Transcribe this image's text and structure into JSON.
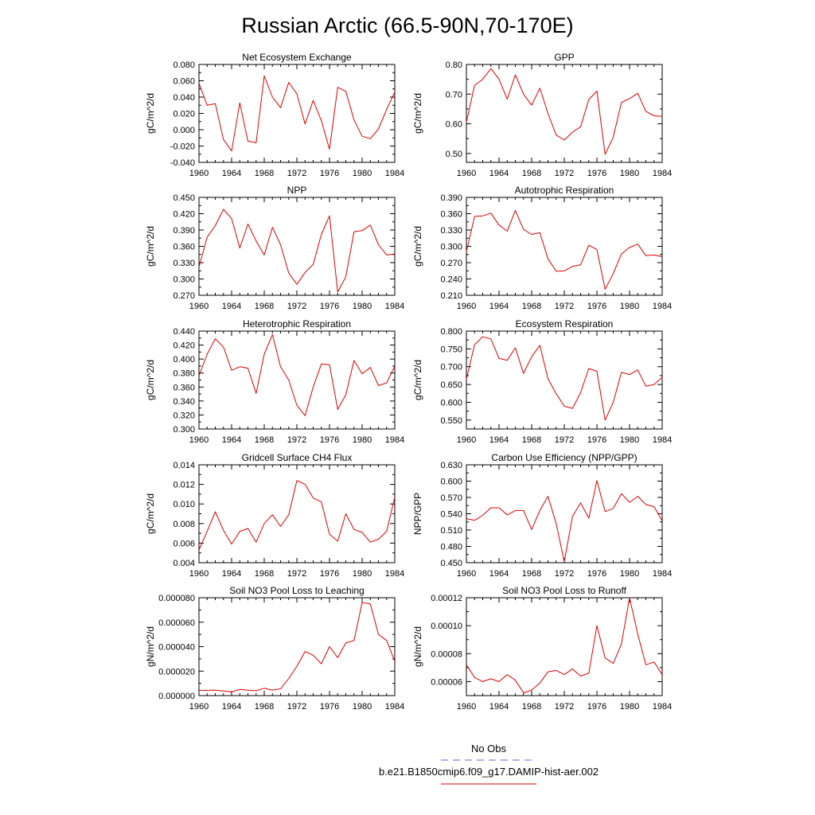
{
  "title": "Russian Arctic (66.5-90N,70-170E)",
  "legend": {
    "placement": "bottom-center",
    "items": [
      {
        "label": "No Obs",
        "color": "#6666dd",
        "dash": true
      },
      {
        "label": "b.e21.B1850cmip6.f09_g17.DAMIP-hist-aer.002",
        "color": "#dd0000",
        "dash": false
      }
    ]
  },
  "chart_data": [
    {
      "type": "line",
      "title": "Net Ecosystem Exchange",
      "ylabel": "gC/m^2/d",
      "xlim": [
        1960,
        1984
      ],
      "ylim": [
        -0.04,
        0.08
      ],
      "xticks": [
        1960,
        1964,
        1968,
        1972,
        1976,
        1980,
        1984
      ],
      "xtick_labels": [
        "1960",
        "1964",
        "1968",
        "1972",
        "1976",
        "1980",
        "1984"
      ],
      "yticks": [
        -0.04,
        -0.02,
        0,
        0.02,
        0.04,
        0.06,
        0.08
      ],
      "ytick_labels": [
        "-0.040",
        "-0.020",
        "0.000",
        "0.020",
        "0.040",
        "0.060",
        "0.080"
      ],
      "x": [
        1960,
        1961,
        1962,
        1963,
        1964,
        1965,
        1966,
        1967,
        1968,
        1969,
        1970,
        1971,
        1972,
        1973,
        1974,
        1975,
        1976,
        1977,
        1978,
        1979,
        1980,
        1981,
        1982,
        1983,
        1984
      ],
      "series": [
        {
          "color": "#dd0000",
          "values": [
            0.057,
            0.03,
            0.032,
            -0.012,
            -0.026,
            0.033,
            -0.014,
            -0.016,
            0.066,
            0.04,
            0.027,
            0.058,
            0.044,
            0.007,
            0.036,
            0.011,
            -0.024,
            0.052,
            0.047,
            0.012,
            -0.008,
            -0.011,
            0.001,
            0.025,
            0.046
          ]
        }
      ]
    },
    {
      "type": "line",
      "title": "GPP",
      "ylabel": "gC/m^2/d",
      "xlim": [
        1960,
        1984
      ],
      "ylim": [
        0.47,
        0.8
      ],
      "xticks": [
        1960,
        1964,
        1968,
        1972,
        1976,
        1980,
        1984
      ],
      "xtick_labels": [
        "1960",
        "1964",
        "1968",
        "1972",
        "1976",
        "1980",
        "1984"
      ],
      "yticks": [
        0.5,
        0.6,
        0.7,
        0.8
      ],
      "ytick_labels": [
        "0.50",
        "0.60",
        "0.70",
        "0.80"
      ],
      "x": [
        1960,
        1961,
        1962,
        1963,
        1964,
        1965,
        1966,
        1967,
        1968,
        1969,
        1970,
        1971,
        1972,
        1973,
        1974,
        1975,
        1976,
        1977,
        1978,
        1979,
        1980,
        1981,
        1982,
        1983,
        1984
      ],
      "series": [
        {
          "color": "#dd0000",
          "values": [
            0.605,
            0.73,
            0.75,
            0.786,
            0.75,
            0.683,
            0.765,
            0.7,
            0.663,
            0.72,
            0.635,
            0.562,
            0.545,
            0.572,
            0.59,
            0.682,
            0.71,
            0.497,
            0.555,
            0.672,
            0.685,
            0.703,
            0.642,
            0.627,
            0.625
          ]
        }
      ]
    },
    {
      "type": "line",
      "title": "NPP",
      "ylabel": "gC/m^2/d",
      "xlim": [
        1960,
        1984
      ],
      "ylim": [
        0.27,
        0.45
      ],
      "xticks": [
        1960,
        1964,
        1968,
        1972,
        1976,
        1980,
        1984
      ],
      "xtick_labels": [
        "1960",
        "1964",
        "1968",
        "1972",
        "1976",
        "1980",
        "1984"
      ],
      "yticks": [
        0.27,
        0.3,
        0.33,
        0.36,
        0.39,
        0.42,
        0.45
      ],
      "ytick_labels": [
        "0.270",
        "0.300",
        "0.330",
        "0.360",
        "0.390",
        "0.420",
        "0.450"
      ],
      "x": [
        1960,
        1961,
        1962,
        1963,
        1964,
        1965,
        1966,
        1967,
        1968,
        1969,
        1970,
        1971,
        1972,
        1973,
        1974,
        1975,
        1976,
        1977,
        1978,
        1979,
        1980,
        1981,
        1982,
        1983,
        1984
      ],
      "series": [
        {
          "color": "#dd0000",
          "values": [
            0.322,
            0.377,
            0.398,
            0.428,
            0.411,
            0.357,
            0.401,
            0.37,
            0.344,
            0.395,
            0.363,
            0.311,
            0.29,
            0.312,
            0.327,
            0.382,
            0.416,
            0.276,
            0.304,
            0.387,
            0.389,
            0.399,
            0.363,
            0.344,
            0.346
          ]
        }
      ]
    },
    {
      "type": "line",
      "title": "Autotrophic Respiration",
      "ylabel": "gC/m^2/d",
      "xlim": [
        1960,
        1984
      ],
      "ylim": [
        0.21,
        0.39
      ],
      "xticks": [
        1960,
        1964,
        1968,
        1972,
        1976,
        1980,
        1984
      ],
      "xtick_labels": [
        "1960",
        "1964",
        "1968",
        "1972",
        "1976",
        "1980",
        "1984"
      ],
      "yticks": [
        0.21,
        0.24,
        0.27,
        0.3,
        0.33,
        0.36,
        0.39
      ],
      "ytick_labels": [
        "0.210",
        "0.240",
        "0.270",
        "0.300",
        "0.330",
        "0.360",
        "0.390"
      ],
      "x": [
        1960,
        1961,
        1962,
        1963,
        1964,
        1965,
        1966,
        1967,
        1968,
        1969,
        1970,
        1971,
        1972,
        1973,
        1974,
        1975,
        1976,
        1977,
        1978,
        1979,
        1980,
        1981,
        1982,
        1983,
        1984
      ],
      "series": [
        {
          "color": "#dd0000",
          "values": [
            0.29,
            0.355,
            0.356,
            0.361,
            0.339,
            0.328,
            0.366,
            0.331,
            0.322,
            0.325,
            0.277,
            0.254,
            0.255,
            0.263,
            0.266,
            0.302,
            0.294,
            0.221,
            0.25,
            0.286,
            0.298,
            0.304,
            0.283,
            0.284,
            0.281
          ]
        }
      ]
    },
    {
      "type": "line",
      "title": "Heterotrophic Respiration",
      "ylabel": "gC/m^2/d",
      "xlim": [
        1960,
        1984
      ],
      "ylim": [
        0.3,
        0.44
      ],
      "xticks": [
        1960,
        1964,
        1968,
        1972,
        1976,
        1980,
        1984
      ],
      "xtick_labels": [
        "1960",
        "1964",
        "1968",
        "1972",
        "1976",
        "1980",
        "1984"
      ],
      "yticks": [
        0.3,
        0.32,
        0.34,
        0.36,
        0.38,
        0.4,
        0.42,
        0.44
      ],
      "ytick_labels": [
        "0.300",
        "0.320",
        "0.340",
        "0.360",
        "0.380",
        "0.400",
        "0.420",
        "0.440"
      ],
      "x": [
        1960,
        1961,
        1962,
        1963,
        1964,
        1965,
        1966,
        1967,
        1968,
        1969,
        1970,
        1971,
        1972,
        1973,
        1974,
        1975,
        1976,
        1977,
        1978,
        1979,
        1980,
        1981,
        1982,
        1983,
        1984
      ],
      "series": [
        {
          "color": "#dd0000",
          "values": [
            0.376,
            0.407,
            0.429,
            0.417,
            0.384,
            0.389,
            0.387,
            0.351,
            0.407,
            0.435,
            0.389,
            0.37,
            0.334,
            0.319,
            0.36,
            0.393,
            0.392,
            0.328,
            0.349,
            0.398,
            0.379,
            0.388,
            0.362,
            0.366,
            0.39
          ]
        }
      ]
    },
    {
      "type": "line",
      "title": "Ecosystem Respiration",
      "ylabel": "gC/m^2/d",
      "xlim": [
        1960,
        1984
      ],
      "ylim": [
        0.525,
        0.8
      ],
      "xticks": [
        1960,
        1964,
        1968,
        1972,
        1976,
        1980,
        1984
      ],
      "xtick_labels": [
        "1960",
        "1964",
        "1968",
        "1972",
        "1976",
        "1980",
        "1984"
      ],
      "yticks": [
        0.55,
        0.6,
        0.65,
        0.7,
        0.75,
        0.8
      ],
      "ytick_labels": [
        "0.550",
        "0.600",
        "0.650",
        "0.700",
        "0.750",
        "0.800"
      ],
      "x": [
        1960,
        1961,
        1962,
        1963,
        1964,
        1965,
        1966,
        1967,
        1968,
        1969,
        1970,
        1971,
        1972,
        1973,
        1974,
        1975,
        1976,
        1977,
        1978,
        1979,
        1980,
        1981,
        1982,
        1983,
        1984
      ],
      "series": [
        {
          "color": "#dd0000",
          "values": [
            0.665,
            0.762,
            0.784,
            0.778,
            0.723,
            0.718,
            0.753,
            0.681,
            0.728,
            0.76,
            0.666,
            0.624,
            0.589,
            0.583,
            0.627,
            0.695,
            0.687,
            0.55,
            0.6,
            0.684,
            0.678,
            0.691,
            0.645,
            0.65,
            0.67
          ]
        }
      ]
    },
    {
      "type": "line",
      "title": "Gridcell Surface CH4 Flux",
      "ylabel": "gC/m^2/d",
      "xlim": [
        1960,
        1984
      ],
      "ylim": [
        0.004,
        0.014
      ],
      "xticks": [
        1960,
        1964,
        1968,
        1972,
        1976,
        1980,
        1984
      ],
      "xtick_labels": [
        "1960",
        "1964",
        "1968",
        "1972",
        "1976",
        "1980",
        "1984"
      ],
      "yticks": [
        0.004,
        0.006,
        0.008,
        0.01,
        0.012,
        0.014
      ],
      "ytick_labels": [
        "0.004",
        "0.006",
        "0.008",
        "0.010",
        "0.012",
        "0.014"
      ],
      "x": [
        1960,
        1961,
        1962,
        1963,
        1964,
        1965,
        1966,
        1967,
        1968,
        1969,
        1970,
        1971,
        1972,
        1973,
        1974,
        1975,
        1976,
        1977,
        1978,
        1979,
        1980,
        1981,
        1982,
        1983,
        1984
      ],
      "series": [
        {
          "color": "#dd0000",
          "values": [
            0.0053,
            0.0072,
            0.0092,
            0.0073,
            0.0059,
            0.0072,
            0.0075,
            0.0061,
            0.008,
            0.0089,
            0.0077,
            0.0089,
            0.0124,
            0.012,
            0.0106,
            0.0102,
            0.0069,
            0.0062,
            0.009,
            0.0074,
            0.0071,
            0.0061,
            0.0064,
            0.0072,
            0.0107
          ]
        }
      ]
    },
    {
      "type": "line",
      "title": "Carbon Use Efficiency (NPP/GPP)",
      "ylabel": "NPP/GPP",
      "xlim": [
        1960,
        1984
      ],
      "ylim": [
        0.45,
        0.63
      ],
      "xticks": [
        1960,
        1964,
        1968,
        1972,
        1976,
        1980,
        1984
      ],
      "xtick_labels": [
        "1960",
        "1964",
        "1968",
        "1972",
        "1976",
        "1980",
        "1984"
      ],
      "yticks": [
        0.45,
        0.48,
        0.51,
        0.54,
        0.57,
        0.6,
        0.63
      ],
      "ytick_labels": [
        "0.450",
        "0.480",
        "0.510",
        "0.540",
        "0.570",
        "0.600",
        "0.630"
      ],
      "x": [
        1960,
        1961,
        1962,
        1963,
        1964,
        1965,
        1966,
        1967,
        1968,
        1969,
        1970,
        1971,
        1972,
        1973,
        1974,
        1975,
        1976,
        1977,
        1978,
        1979,
        1980,
        1981,
        1982,
        1983,
        1984
      ],
      "series": [
        {
          "color": "#dd0000",
          "values": [
            0.531,
            0.528,
            0.537,
            0.551,
            0.551,
            0.538,
            0.546,
            0.546,
            0.511,
            0.546,
            0.572,
            0.522,
            0.452,
            0.535,
            0.56,
            0.532,
            0.601,
            0.544,
            0.55,
            0.577,
            0.561,
            0.572,
            0.557,
            0.553,
            0.527
          ]
        }
      ]
    },
    {
      "type": "line",
      "title": "Soil NO3 Pool Loss to Leaching",
      "ylabel": "gN/m^2/d",
      "xlim": [
        1960,
        1984
      ],
      "ylim": [
        0,
        8e-05
      ],
      "xticks": [
        1960,
        1964,
        1968,
        1972,
        1976,
        1980,
        1984
      ],
      "xtick_labels": [
        "1960",
        "1964",
        "1968",
        "1972",
        "1976",
        "1980",
        "1984"
      ],
      "yticks": [
        0,
        2e-05,
        4e-05,
        6e-05,
        8e-05
      ],
      "ytick_labels": [
        "0.000000",
        "0.000020",
        "0.000040",
        "0.000060",
        "0.000080"
      ],
      "x": [
        1960,
        1961,
        1962,
        1963,
        1964,
        1965,
        1966,
        1967,
        1968,
        1969,
        1970,
        1971,
        1972,
        1973,
        1974,
        1975,
        1976,
        1977,
        1978,
        1979,
        1980,
        1981,
        1982,
        1983,
        1984
      ],
      "series": [
        {
          "color": "#dd0000",
          "values": [
            4.3e-06,
            4.3e-06,
            4.5e-06,
            3.7e-06,
            3e-06,
            5e-06,
            4.5e-06,
            4e-06,
            6e-06,
            4.5e-06,
            5.5e-06,
            1.4e-05,
            2.4e-05,
            3.6e-05,
            3.3e-05,
            2.6e-05,
            4e-05,
            3.1e-05,
            4.3e-05,
            4.5e-05,
            7.6e-05,
            7.5e-05,
            5e-05,
            4.5e-05,
            2.8e-05
          ]
        }
      ]
    },
    {
      "type": "line",
      "title": "Soil NO3 Pool Loss to Runoff",
      "ylabel": "gN/m^2/d",
      "xlim": [
        1960,
        1984
      ],
      "ylim": [
        5e-05,
        0.00012
      ],
      "xticks": [
        1960,
        1964,
        1968,
        1972,
        1976,
        1980,
        1984
      ],
      "xtick_labels": [
        "1960",
        "1964",
        "1968",
        "1972",
        "1976",
        "1980",
        "1984"
      ],
      "yticks": [
        6e-05,
        8e-05,
        0.0001,
        0.00012
      ],
      "ytick_labels": [
        "0.00006",
        "0.00008",
        "0.00010",
        "0.00012"
      ],
      "x": [
        1960,
        1961,
        1962,
        1963,
        1964,
        1965,
        1966,
        1967,
        1968,
        1969,
        1970,
        1971,
        1972,
        1973,
        1974,
        1975,
        1976,
        1977,
        1978,
        1979,
        1980,
        1981,
        1982,
        1983,
        1984
      ],
      "series": [
        {
          "color": "#dd0000",
          "values": [
            7.2e-05,
            6.3e-05,
            6e-05,
            6.2e-05,
            6e-05,
            6.5e-05,
            6.1e-05,
            5.2e-05,
            5.4e-05,
            5.9e-05,
            6.7e-05,
            6.8e-05,
            6.5e-05,
            6.9e-05,
            6.4e-05,
            6.6e-05,
            0.0001,
            7.7e-05,
            7.3e-05,
            8.7e-05,
            0.00012,
            9.4e-05,
            7.2e-05,
            7.4e-05,
            6.5e-05
          ]
        }
      ]
    }
  ]
}
